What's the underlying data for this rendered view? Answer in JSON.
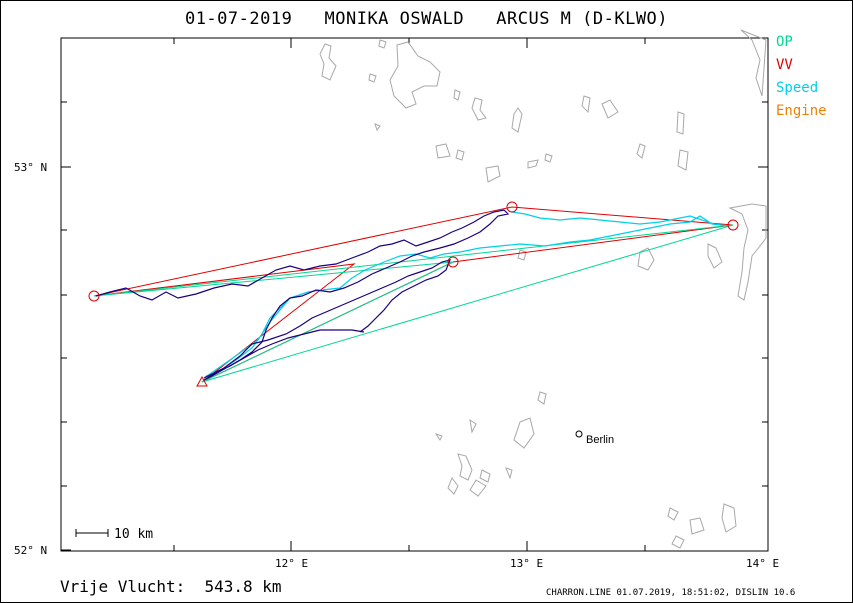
{
  "title": "01-07-2019   MONIKA OSWALD   ARCUS M (D-KLWO)",
  "legend": [
    {
      "label": "OP",
      "color": "#00d890"
    },
    {
      "label": "VV",
      "color": "#e00000"
    },
    {
      "label": "Speed",
      "color": "#00d0e8"
    },
    {
      "label": "Engine",
      "color": "#f08000"
    }
  ],
  "axes": {
    "lat_labels": [
      "53° N",
      "52° N"
    ],
    "lon_labels": [
      "12° E",
      "13° E",
      "14° E"
    ]
  },
  "scale_bar": "10 km",
  "city": "Berlin",
  "result": "Vrije Vlucht:  543.8 km",
  "footer": "CHARRON.LINE 01.07.2019, 18:51:02, DISLIN 10.6",
  "colors": {
    "track": "#1a0080",
    "coast": "#a8a8a8",
    "vv": "#e00000",
    "op": "#00d890",
    "speed": "#00d0e8"
  }
}
